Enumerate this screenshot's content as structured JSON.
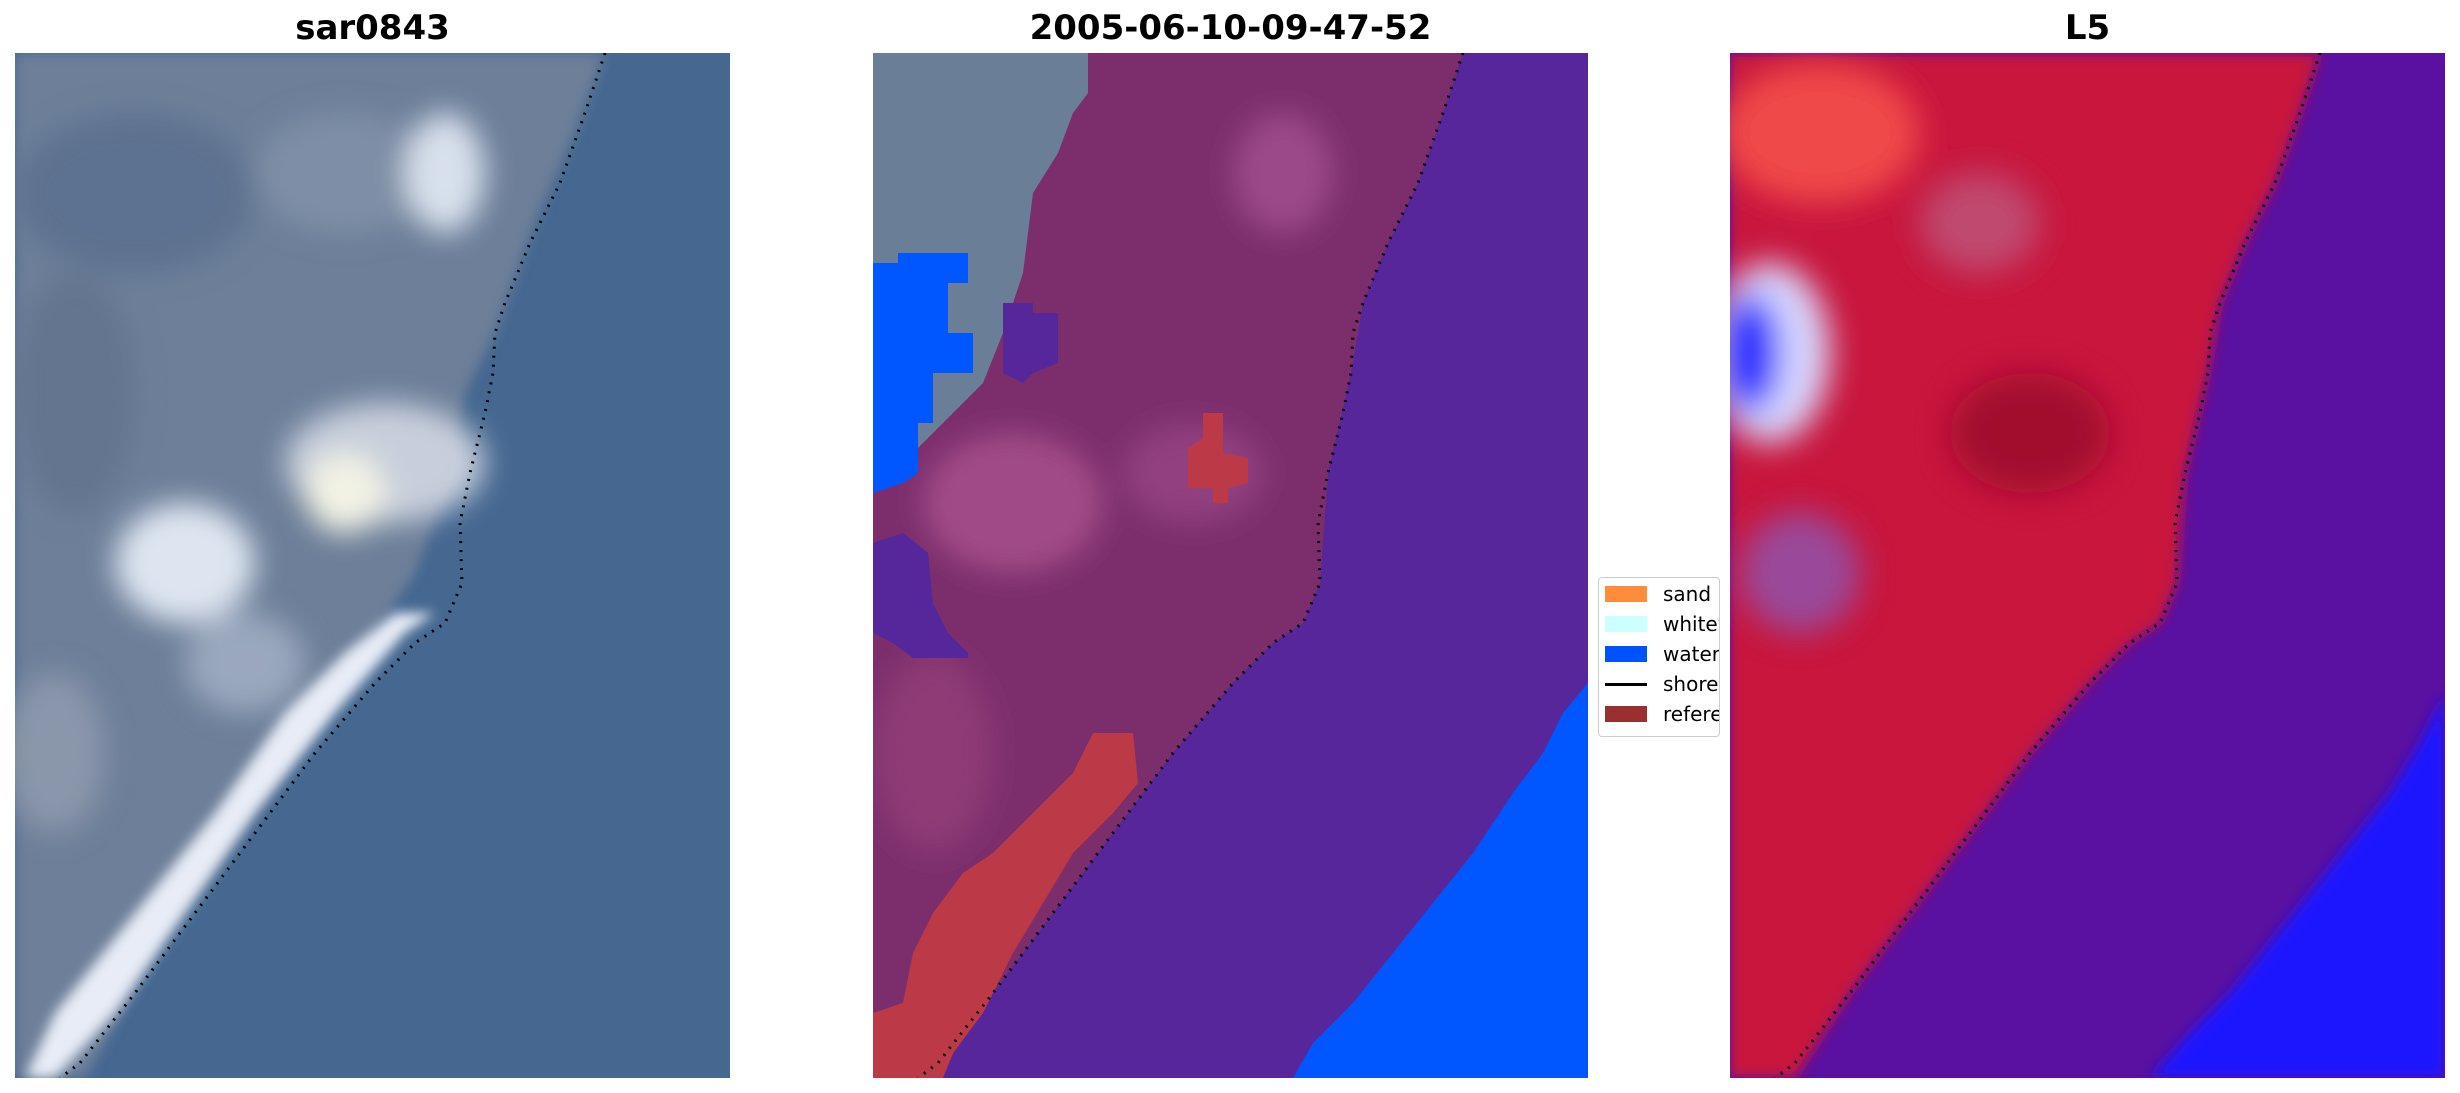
{
  "panels": [
    {
      "title": "sar0843"
    },
    {
      "title": "2005-06-10-09-47-52"
    },
    {
      "title": "L5"
    }
  ],
  "legend": {
    "items": [
      {
        "label": "sand",
        "color": "#ff8c3a",
        "kind": "patch"
      },
      {
        "label": "whitewater",
        "color": "#ccffff",
        "kind": "patch"
      },
      {
        "label": "water",
        "color": "#0052ff",
        "kind": "patch"
      },
      {
        "label": "shoreline",
        "color": "#000000",
        "kind": "line"
      },
      {
        "label": "reference",
        "color": "#9a2f2f",
        "kind": "patch"
      }
    ]
  },
  "colors": {
    "rgb_water": "#46688f",
    "rgb_land": "#6d7f98",
    "class_water_overlay": "#57259a",
    "class_land_overlay": "#7c2e6c",
    "class_water_blue": "#0057ff",
    "class_reference": "#bc3a48",
    "mndwi_land": "#c8143a",
    "mndwi_water": "#5a10a0",
    "mndwi_high": "#1a14ff",
    "mndwi_low": "#ff3030"
  }
}
